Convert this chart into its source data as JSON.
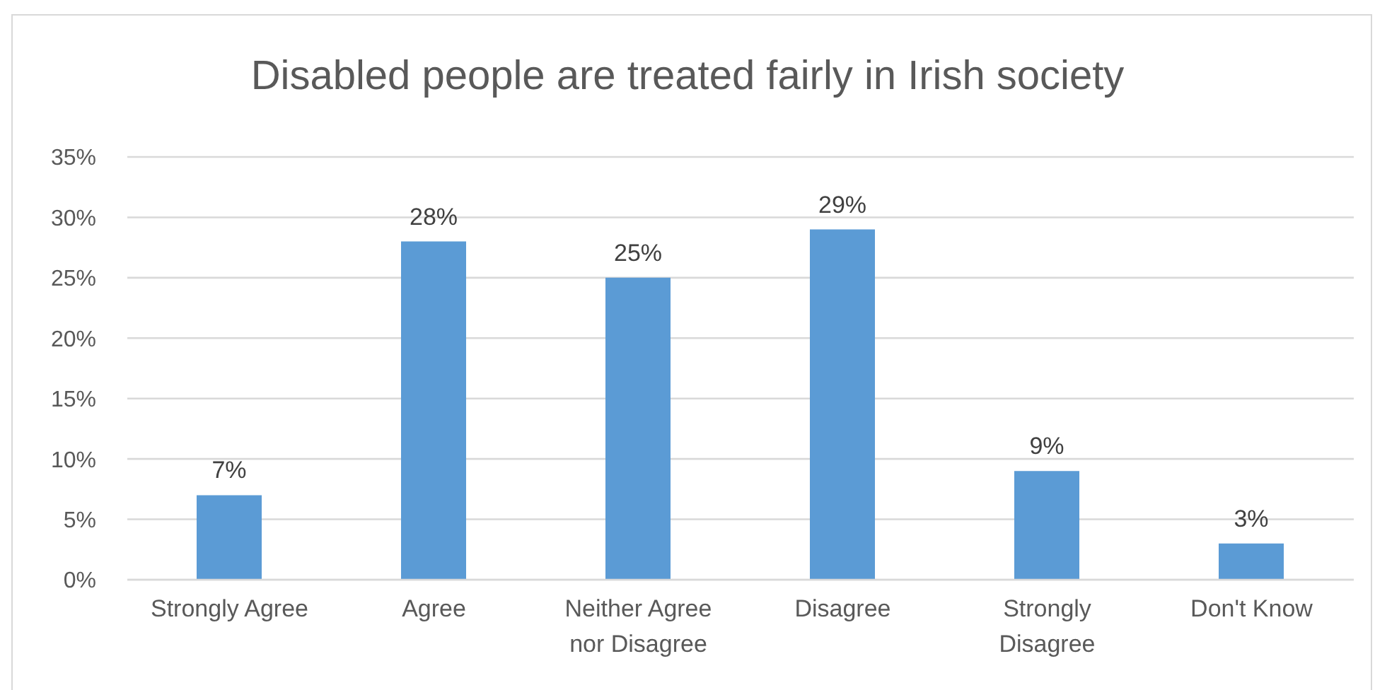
{
  "chart_data": {
    "type": "bar",
    "title": "Disabled people are treated fairly in Irish society",
    "categories": [
      "Strongly Agree",
      "Agree",
      "Neither Agree nor Disagree",
      "Disagree",
      "Strongly Disagree",
      "Don't Know"
    ],
    "values": [
      7,
      28,
      25,
      29,
      9,
      3
    ],
    "color": "#5b9bd5",
    "value_labels": [
      "7%",
      "28%",
      "25%",
      "29%",
      "9%",
      "3%"
    ],
    "ylim": [
      0,
      35
    ],
    "yticks": [
      {
        "value": 0,
        "label": "0%"
      },
      {
        "value": 5,
        "label": "5%"
      },
      {
        "value": 10,
        "label": "10%"
      },
      {
        "value": 15,
        "label": "15%"
      },
      {
        "value": 20,
        "label": "20%"
      },
      {
        "value": 25,
        "label": "25%"
      },
      {
        "value": 30,
        "label": "30%"
      },
      {
        "value": 35,
        "label": "35%"
      }
    ],
    "grid": "y"
  }
}
